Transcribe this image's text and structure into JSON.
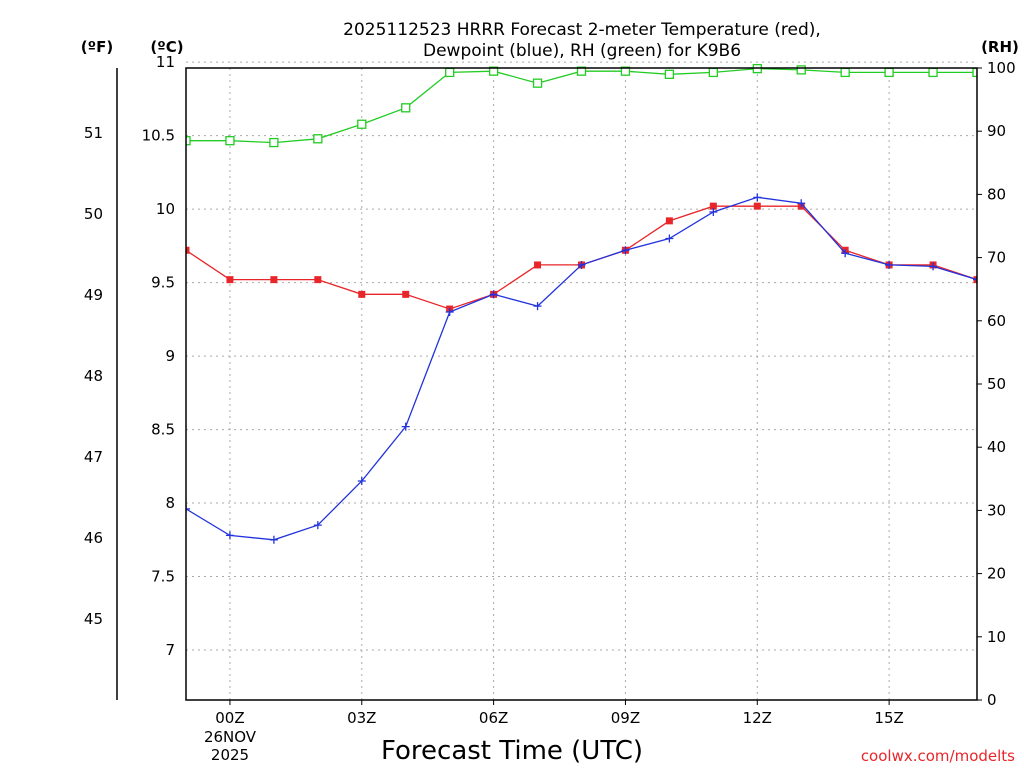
{
  "chart_data": {
    "type": "line",
    "title_line1": "2025112523 HRRR Forecast 2-meter Temperature (red),",
    "title_line2": "Dewpoint (blue), RH (green) for K9B6",
    "unit_f": "(ºF)",
    "unit_c": "(ºC)",
    "unit_rh": "(RH)",
    "xlabel": "Forecast Time (UTC)",
    "credit": "coolwx.com/modelts",
    "date_line1": "26NOV",
    "date_line2": "2025",
    "x_range": [
      -1,
      17
    ],
    "c_range": [
      6.66,
      10.96
    ],
    "f_range": [
      44.0,
      51.8
    ],
    "rh_range": [
      0,
      100
    ],
    "x_ticks": [
      {
        "x": 0,
        "label": "00Z"
      },
      {
        "x": 3,
        "label": "03Z"
      },
      {
        "x": 6,
        "label": "06Z"
      },
      {
        "x": 9,
        "label": "09Z"
      },
      {
        "x": 12,
        "label": "12Z"
      },
      {
        "x": 15,
        "label": "15Z"
      }
    ],
    "c_ticks": [
      {
        "v": 7,
        "label": "7"
      },
      {
        "v": 7.5,
        "label": "7.5"
      },
      {
        "v": 8,
        "label": "8"
      },
      {
        "v": 8.5,
        "label": "8.5"
      },
      {
        "v": 9,
        "label": "9"
      },
      {
        "v": 9.5,
        "label": "9.5"
      },
      {
        "v": 10,
        "label": "10"
      },
      {
        "v": 10.5,
        "label": "10.5"
      },
      {
        "v": 11,
        "label": "11"
      }
    ],
    "f_ticks": [
      {
        "v": 45,
        "label": "45"
      },
      {
        "v": 46,
        "label": "46"
      },
      {
        "v": 47,
        "label": "47"
      },
      {
        "v": 48,
        "label": "48"
      },
      {
        "v": 49,
        "label": "49"
      },
      {
        "v": 50,
        "label": "50"
      },
      {
        "v": 51,
        "label": "51"
      }
    ],
    "rh_ticks": [
      {
        "v": 0,
        "label": "0"
      },
      {
        "v": 10,
        "label": "10"
      },
      {
        "v": 20,
        "label": "20"
      },
      {
        "v": 30,
        "label": "30"
      },
      {
        "v": 40,
        "label": "40"
      },
      {
        "v": 50,
        "label": "50"
      },
      {
        "v": 60,
        "label": "60"
      },
      {
        "v": 70,
        "label": "70"
      },
      {
        "v": 80,
        "label": "80"
      },
      {
        "v": 90,
        "label": "90"
      },
      {
        "v": 100,
        "label": "100"
      }
    ],
    "x": [
      -1,
      0,
      1,
      2,
      3,
      4,
      5,
      6,
      7,
      8,
      9,
      10,
      11,
      12,
      13,
      14,
      15,
      16,
      17
    ],
    "series": [
      {
        "name": "Temperature",
        "axis": "c",
        "color": "#e8262a",
        "marker": "filled-square",
        "values": [
          9.72,
          9.52,
          9.52,
          9.52,
          9.42,
          9.42,
          9.32,
          9.42,
          9.62,
          9.62,
          9.72,
          9.92,
          10.02,
          10.02,
          10.02,
          9.72,
          9.62,
          9.62,
          9.52
        ]
      },
      {
        "name": "Dewpoint",
        "axis": "c",
        "color": "#2233dd",
        "marker": "plus",
        "values": [
          7.96,
          7.78,
          7.75,
          7.85,
          8.15,
          8.52,
          9.3,
          9.42,
          9.34,
          9.62,
          9.72,
          9.8,
          9.98,
          10.08,
          10.04,
          9.7,
          9.62,
          9.61,
          9.52
        ]
      },
      {
        "name": "RH",
        "axis": "rh",
        "color": "#22cc22",
        "marker": "open-square",
        "values": [
          88.5,
          88.5,
          88.2,
          88.8,
          91.1,
          93.7,
          99.3,
          99.5,
          97.6,
          99.5,
          99.5,
          99.0,
          99.3,
          99.9,
          99.7,
          99.3,
          99.3,
          99.3,
          99.3
        ]
      }
    ]
  }
}
